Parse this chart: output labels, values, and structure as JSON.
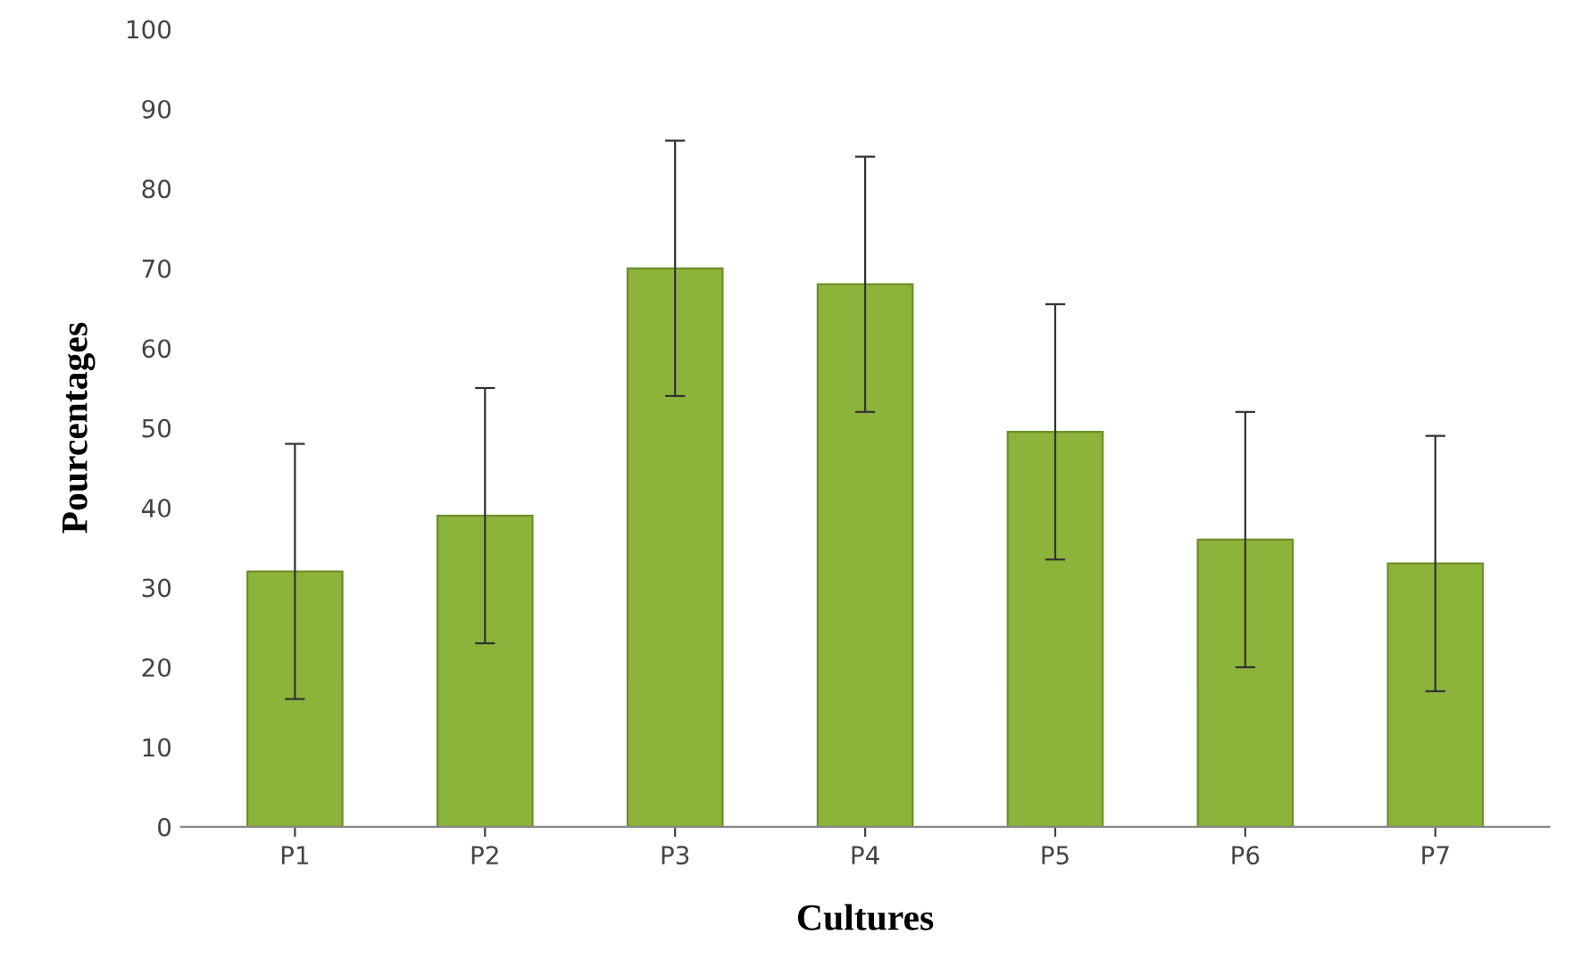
{
  "chart_data": {
    "type": "bar",
    "xlabel": "Cultures",
    "ylabel": "Pourcentages",
    "categories": [
      "P1",
      "P2",
      "P3",
      "P4",
      "P5",
      "P6",
      "P7"
    ],
    "values": [
      32,
      39,
      70,
      68,
      49.5,
      36,
      33
    ],
    "errors": [
      16,
      16,
      16,
      16,
      16,
      16,
      16
    ],
    "color": "#8db43a",
    "ylim": [
      0,
      100
    ],
    "yticks": [
      0,
      10,
      20,
      30,
      40,
      50,
      60,
      70,
      80,
      90,
      100
    ],
    "grid": false,
    "legend": false
  }
}
